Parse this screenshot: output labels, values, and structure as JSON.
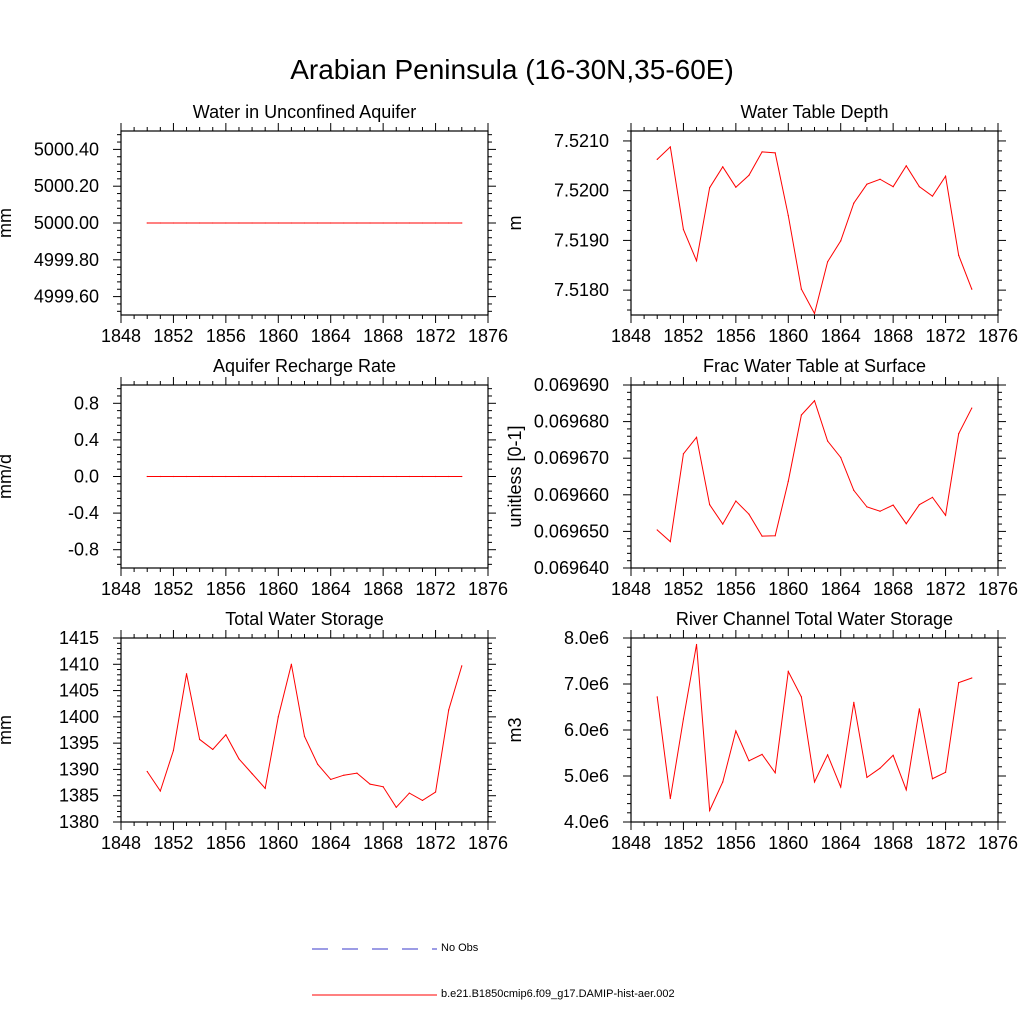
{
  "figure_title": "Arabian Peninsula (16-30N,35-60E)",
  "chart_data": [
    {
      "type": "line",
      "title": "Water in Unconfined Aquifer",
      "ylabel": "mm",
      "xlim": [
        1848,
        1876
      ],
      "ylim": [
        4999.5,
        5000.5
      ],
      "xticks": [
        1848,
        1852,
        1856,
        1860,
        1864,
        1868,
        1872,
        1876
      ],
      "xtick_labels": [
        "1848",
        "1852",
        "1856",
        "1860",
        "1864",
        "1868",
        "1872",
        "1876"
      ],
      "yticks": [
        4999.6,
        4999.8,
        5000.0,
        5000.2,
        5000.4
      ],
      "ytick_labels": [
        "4999.60",
        "4999.80",
        "5000.00",
        "5000.20",
        "5000.40"
      ],
      "series": [
        {
          "color": "#ff0000",
          "x": [
            1850,
            1851,
            1852,
            1853,
            1854,
            1855,
            1856,
            1857,
            1858,
            1859,
            1860,
            1861,
            1862,
            1863,
            1864,
            1865,
            1866,
            1867,
            1868,
            1869,
            1870,
            1871,
            1872,
            1873,
            1874
          ],
          "y": [
            5000,
            5000,
            5000,
            5000,
            5000,
            5000,
            5000,
            5000,
            5000,
            5000,
            5000,
            5000,
            5000,
            5000,
            5000,
            5000,
            5000,
            5000,
            5000,
            5000,
            5000,
            5000,
            5000,
            5000,
            5000
          ]
        }
      ]
    },
    {
      "type": "line",
      "title": "Water Table Depth",
      "ylabel": "m",
      "xlim": [
        1848,
        1876
      ],
      "ylim": [
        7.5175,
        7.5212
      ],
      "xticks": [
        1848,
        1852,
        1856,
        1860,
        1864,
        1868,
        1872,
        1876
      ],
      "xtick_labels": [
        "1848",
        "1852",
        "1856",
        "1860",
        "1864",
        "1868",
        "1872",
        "1876"
      ],
      "yticks": [
        7.518,
        7.519,
        7.52,
        7.521
      ],
      "ytick_labels": [
        "7.5180",
        "7.5190",
        "7.5200",
        "7.5210"
      ],
      "series": [
        {
          "color": "#ff0000",
          "x": [
            1850,
            1851,
            1852,
            1853,
            1854,
            1855,
            1856,
            1857,
            1858,
            1859,
            1860,
            1861,
            1862,
            1863,
            1864,
            1865,
            1866,
            1867,
            1868,
            1869,
            1870,
            1871,
            1872,
            1873,
            1874
          ],
          "y": [
            7.52063,
            7.52088,
            7.51922,
            7.51859,
            7.52006,
            7.52048,
            7.52007,
            7.52031,
            7.52078,
            7.52076,
            7.5195,
            7.51802,
            7.51753,
            7.51857,
            7.51899,
            7.51975,
            7.52013,
            7.52023,
            7.52008,
            7.5205,
            7.52008,
            7.51989,
            7.52029,
            7.5187,
            7.51802
          ]
        }
      ]
    },
    {
      "type": "line",
      "title": "Aquifer Recharge Rate",
      "ylabel": "mm/d",
      "xlim": [
        1848,
        1876
      ],
      "ylim": [
        -1.0,
        1.0
      ],
      "xticks": [
        1848,
        1852,
        1856,
        1860,
        1864,
        1868,
        1872,
        1876
      ],
      "xtick_labels": [
        "1848",
        "1852",
        "1856",
        "1860",
        "1864",
        "1868",
        "1872",
        "1876"
      ],
      "yticks": [
        -0.8,
        -0.4,
        0.0,
        0.4,
        0.8
      ],
      "ytick_labels": [
        "-0.8",
        "-0.4",
        "0.0",
        "0.4",
        "0.8"
      ],
      "series": [
        {
          "color": "#ff0000",
          "x": [
            1850,
            1851,
            1852,
            1853,
            1854,
            1855,
            1856,
            1857,
            1858,
            1859,
            1860,
            1861,
            1862,
            1863,
            1864,
            1865,
            1866,
            1867,
            1868,
            1869,
            1870,
            1871,
            1872,
            1873,
            1874
          ],
          "y": [
            0,
            0,
            0,
            0,
            0,
            0,
            0,
            0,
            0,
            0,
            0,
            0,
            0,
            0,
            0,
            0,
            0,
            0,
            0,
            0,
            0,
            0,
            0,
            0,
            0
          ]
        }
      ]
    },
    {
      "type": "line",
      "title": "Frac Water Table at Surface",
      "ylabel": "unitless [0-1]",
      "xlim": [
        1848,
        1876
      ],
      "ylim": [
        0.06964,
        0.06969
      ],
      "xticks": [
        1848,
        1852,
        1856,
        1860,
        1864,
        1868,
        1872,
        1876
      ],
      "xtick_labels": [
        "1848",
        "1852",
        "1856",
        "1860",
        "1864",
        "1868",
        "1872",
        "1876"
      ],
      "yticks": [
        0.06964,
        0.06965,
        0.06966,
        0.06967,
        0.06968,
        0.06969
      ],
      "ytick_labels": [
        "0.069640",
        "0.069650",
        "0.069660",
        "0.069670",
        "0.069680",
        "0.069690"
      ],
      "series": [
        {
          "color": "#ff0000",
          "x": [
            1850,
            1851,
            1852,
            1853,
            1854,
            1855,
            1856,
            1857,
            1858,
            1859,
            1860,
            1861,
            1862,
            1863,
            1864,
            1865,
            1866,
            1867,
            1868,
            1869,
            1870,
            1871,
            1872,
            1873,
            1874
          ],
          "y": [
            0.0696504,
            0.0696472,
            0.0696712,
            0.0696757,
            0.0696573,
            0.069652,
            0.0696583,
            0.0696547,
            0.0696487,
            0.0696488,
            0.0696637,
            0.0696818,
            0.0696857,
            0.0696747,
            0.0696702,
            0.0696612,
            0.0696567,
            0.0696555,
            0.0696572,
            0.0696521,
            0.0696573,
            0.0696593,
            0.0696544,
            0.0696767,
            0.0696837
          ]
        }
      ]
    },
    {
      "type": "line",
      "title": "Total Water Storage",
      "ylabel": "mm",
      "xlim": [
        1848,
        1876
      ],
      "ylim": [
        1380,
        1415
      ],
      "xticks": [
        1848,
        1852,
        1856,
        1860,
        1864,
        1868,
        1872,
        1876
      ],
      "xtick_labels": [
        "1848",
        "1852",
        "1856",
        "1860",
        "1864",
        "1868",
        "1872",
        "1876"
      ],
      "yticks": [
        1380,
        1385,
        1390,
        1395,
        1400,
        1405,
        1410,
        1415
      ],
      "ytick_labels": [
        "1380",
        "1385",
        "1390",
        "1395",
        "1400",
        "1405",
        "1410",
        "1415"
      ],
      "series": [
        {
          "color": "#ff0000",
          "x": [
            1850,
            1851,
            1852,
            1853,
            1854,
            1855,
            1856,
            1857,
            1858,
            1859,
            1860,
            1861,
            1862,
            1863,
            1864,
            1865,
            1866,
            1867,
            1868,
            1869,
            1870,
            1871,
            1872,
            1873,
            1874
          ],
          "y": [
            1389.6,
            1385.9,
            1393.6,
            1408.2,
            1395.7,
            1393.8,
            1396.6,
            1392.0,
            1389.2,
            1386.4,
            1400.0,
            1410.0,
            1396.3,
            1391.0,
            1388.1,
            1388.9,
            1389.3,
            1387.2,
            1386.7,
            1382.8,
            1385.5,
            1384.1,
            1385.7,
            1401.3,
            1409.7
          ]
        }
      ]
    },
    {
      "type": "line",
      "title": "River Channel Total Water Storage",
      "ylabel": "m3",
      "xlim": [
        1848,
        1876
      ],
      "ylim": [
        4000000,
        8000000
      ],
      "xticks": [
        1848,
        1852,
        1856,
        1860,
        1864,
        1868,
        1872,
        1876
      ],
      "xtick_labels": [
        "1848",
        "1852",
        "1856",
        "1860",
        "1864",
        "1868",
        "1872",
        "1876"
      ],
      "yticks": [
        4000000,
        5000000,
        6000000,
        7000000,
        8000000
      ],
      "ytick_labels": [
        "4.0e6",
        "5.0e6",
        "6.0e6",
        "7.0e6",
        "8.0e6"
      ],
      "series": [
        {
          "color": "#ff0000",
          "x": [
            1850,
            1851,
            1852,
            1853,
            1854,
            1855,
            1856,
            1857,
            1858,
            1859,
            1860,
            1861,
            1862,
            1863,
            1864,
            1865,
            1866,
            1867,
            1868,
            1869,
            1870,
            1871,
            1872,
            1873,
            1874
          ],
          "y": [
            6720000,
            4510000,
            6240000,
            7860000,
            4250000,
            4870000,
            5980000,
            5330000,
            5470000,
            5070000,
            7270000,
            6720000,
            4870000,
            5460000,
            4760000,
            6600000,
            4970000,
            5170000,
            5450000,
            4700000,
            6460000,
            4940000,
            5080000,
            7030000,
            7130000
          ]
        }
      ]
    }
  ],
  "legend": {
    "entries": [
      {
        "label": "No Obs",
        "color": "#3a3acb",
        "style": "dashed"
      },
      {
        "label": "b.e21.B1850cmip6.f09_g17.DAMIP-hist-aer.002",
        "color": "#ff0000",
        "style": "solid"
      }
    ]
  }
}
